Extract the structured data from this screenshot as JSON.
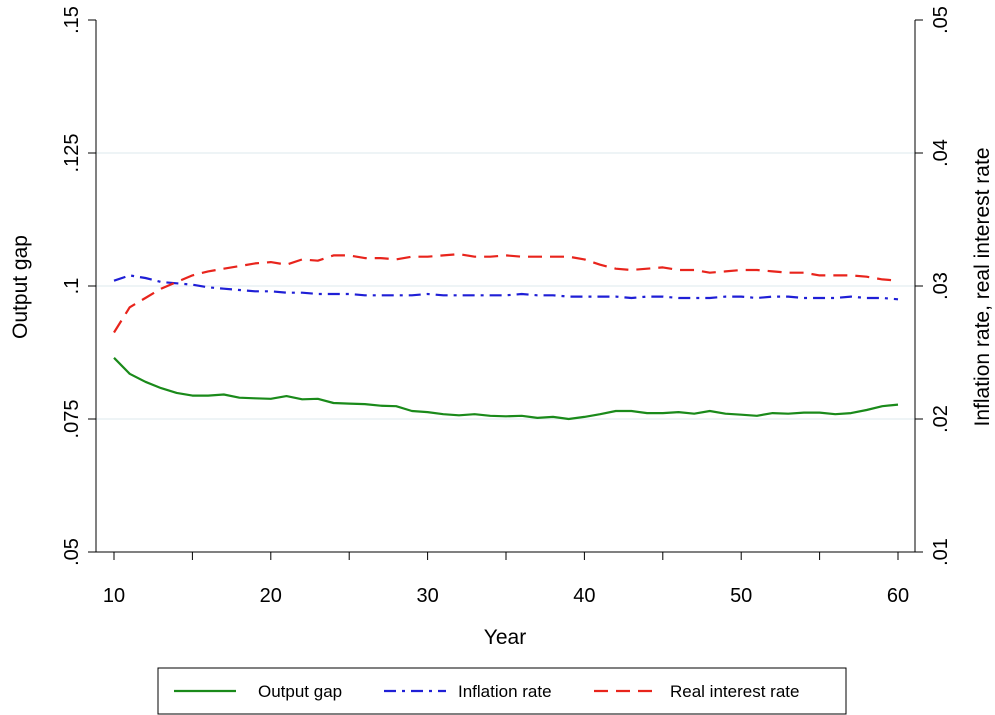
{
  "chart_data": {
    "type": "line",
    "title": "",
    "xlabel": "Year",
    "ylabel_left": "Output gap",
    "ylabel_right": "Inflation rate, real interest rate",
    "xlim": [
      10,
      60
    ],
    "xticks": [
      10,
      20,
      30,
      40,
      50,
      60
    ],
    "xtick_labels": [
      "10",
      "20",
      "30",
      "40",
      "50",
      "60"
    ],
    "ylim_left": [
      0.05,
      0.15
    ],
    "yticks_left": [
      0.05,
      0.075,
      0.1,
      0.125,
      0.15
    ],
    "ytick_labels_left": [
      ".05",
      ".075",
      ".1",
      ".125",
      ".15"
    ],
    "ylim_right": [
      0.01,
      0.05
    ],
    "yticks_right": [
      0.01,
      0.02,
      0.03,
      0.04,
      0.05
    ],
    "ytick_labels_right": [
      ".01",
      ".02",
      ".03",
      ".04",
      ".05"
    ],
    "grid": true,
    "legend_position": "bottom",
    "x": [
      10,
      11,
      12,
      13,
      14,
      15,
      16,
      17,
      18,
      19,
      20,
      21,
      22,
      23,
      24,
      25,
      26,
      27,
      28,
      29,
      30,
      31,
      32,
      33,
      34,
      35,
      36,
      37,
      38,
      39,
      40,
      41,
      42,
      43,
      44,
      45,
      46,
      47,
      48,
      49,
      50,
      51,
      52,
      53,
      54,
      55,
      56,
      57,
      58,
      59,
      60
    ],
    "series": [
      {
        "name": "Output gap",
        "axis": "left",
        "color": "#1a8a1a",
        "dash": "solid",
        "values": [
          0.0865,
          0.0835,
          0.082,
          0.0808,
          0.0799,
          0.0794,
          0.0794,
          0.0796,
          0.079,
          0.0789,
          0.0788,
          0.0793,
          0.0787,
          0.0788,
          0.078,
          0.0779,
          0.0778,
          0.0775,
          0.0774,
          0.0765,
          0.0763,
          0.0759,
          0.0757,
          0.0759,
          0.0756,
          0.0755,
          0.0756,
          0.0752,
          0.0754,
          0.075,
          0.0754,
          0.0759,
          0.0765,
          0.0765,
          0.0761,
          0.0761,
          0.0763,
          0.076,
          0.0765,
          0.076,
          0.0758,
          0.0756,
          0.0761,
          0.076,
          0.0762,
          0.0762,
          0.0759,
          0.0761,
          0.0767,
          0.0774,
          0.0777
        ]
      },
      {
        "name": "Inflation rate",
        "axis": "right",
        "color": "#1f1fd6",
        "dash": "dashdot",
        "values": [
          0.0304,
          0.0308,
          0.0306,
          0.0303,
          0.0302,
          0.0301,
          0.0299,
          0.0298,
          0.0297,
          0.0296,
          0.0296,
          0.0295,
          0.0295,
          0.0294,
          0.0294,
          0.0294,
          0.0293,
          0.0293,
          0.0293,
          0.0293,
          0.0294,
          0.0293,
          0.0293,
          0.0293,
          0.0293,
          0.0293,
          0.0294,
          0.0293,
          0.0293,
          0.0292,
          0.0292,
          0.0292,
          0.0292,
          0.0291,
          0.0292,
          0.0292,
          0.0291,
          0.0291,
          0.0291,
          0.0292,
          0.0292,
          0.0291,
          0.0292,
          0.0292,
          0.0291,
          0.0291,
          0.0291,
          0.0292,
          0.0291,
          0.0291,
          0.029
        ]
      },
      {
        "name": "Real interest rate",
        "axis": "right",
        "color": "#e8241c",
        "dash": "dashed",
        "values": [
          0.0265,
          0.0284,
          0.0291,
          0.0298,
          0.0303,
          0.0308,
          0.0311,
          0.0313,
          0.0315,
          0.0317,
          0.0318,
          0.0316,
          0.032,
          0.0319,
          0.0323,
          0.0323,
          0.0321,
          0.0321,
          0.032,
          0.0322,
          0.0322,
          0.0323,
          0.0324,
          0.0322,
          0.0322,
          0.0323,
          0.0322,
          0.0322,
          0.0322,
          0.0322,
          0.032,
          0.0316,
          0.0313,
          0.0312,
          0.0313,
          0.0314,
          0.0312,
          0.0312,
          0.031,
          0.0311,
          0.0312,
          0.0312,
          0.0311,
          0.031,
          0.031,
          0.0308,
          0.0308,
          0.0308,
          0.0307,
          0.0305,
          0.0304
        ]
      }
    ]
  }
}
